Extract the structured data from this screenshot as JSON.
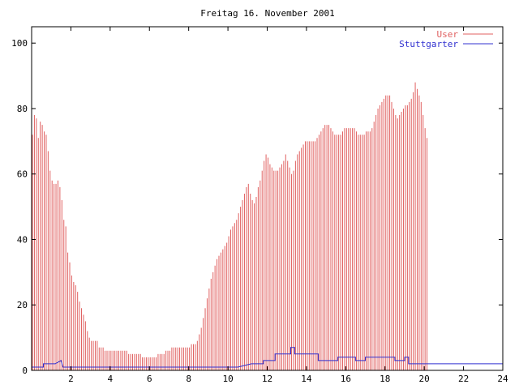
{
  "chart_data": {
    "type": "bar",
    "title": "Freitag 16. November 2001",
    "xlim": [
      0,
      24
    ],
    "ylim": [
      0,
      105
    ],
    "x_ticks": [
      2,
      4,
      6,
      8,
      10,
      12,
      14,
      16,
      18,
      20,
      22,
      24
    ],
    "y_ticks": [
      0,
      20,
      40,
      60,
      80,
      100
    ],
    "legend_position": "top-right",
    "x_step_hours": 0.1,
    "series": [
      {
        "name": "User",
        "style": "impulses",
        "color": "#e06060",
        "values": [
          72,
          78,
          77,
          71,
          76,
          75,
          73,
          72,
          67,
          61,
          58,
          57,
          57,
          58,
          56,
          52,
          46,
          44,
          36,
          33,
          29,
          27,
          26,
          24,
          21,
          19,
          17,
          15,
          12,
          10,
          9,
          9,
          9,
          9,
          7,
          7,
          7,
          6,
          6,
          6,
          6,
          6,
          6,
          6,
          6,
          6,
          6,
          6,
          6,
          5,
          5,
          5,
          5,
          5,
          5,
          5,
          4,
          4,
          4,
          4,
          4,
          4,
          4,
          4,
          5,
          5,
          5,
          5,
          6,
          6,
          6,
          7,
          7,
          7,
          7,
          7,
          7,
          7,
          7,
          7,
          7,
          8,
          8,
          8,
          9,
          11,
          13,
          16,
          19,
          22,
          25,
          28,
          30,
          32,
          34,
          35,
          36,
          37,
          38,
          39,
          41,
          43,
          44,
          45,
          46,
          48,
          50,
          52,
          54,
          56,
          57,
          54,
          52,
          51,
          53,
          56,
          58,
          61,
          64,
          66,
          65,
          63,
          62,
          61,
          61,
          61,
          62,
          63,
          64,
          66,
          64,
          62,
          60,
          61,
          64,
          66,
          67,
          68,
          69,
          70,
          70,
          70,
          70,
          70,
          70,
          71,
          72,
          73,
          74,
          75,
          75,
          75,
          74,
          73,
          72,
          72,
          72,
          72,
          73,
          74,
          74,
          74,
          74,
          74,
          74,
          73,
          72,
          72,
          72,
          72,
          73,
          73,
          73,
          74,
          76,
          78,
          80,
          81,
          82,
          83,
          84,
          84,
          84,
          82,
          80,
          78,
          77,
          78,
          79,
          80,
          81,
          81,
          82,
          83,
          85,
          88,
          86,
          84,
          82,
          78,
          74,
          71
        ],
        "comment": ""
      },
      {
        "name": "Stuttgarter",
        "style": "steps",
        "color": "#3030d0",
        "points": [
          [
            0,
            1
          ],
          [
            0.6,
            1
          ],
          [
            0.6,
            2
          ],
          [
            1.2,
            2
          ],
          [
            1.5,
            3
          ],
          [
            1.6,
            1
          ],
          [
            2.1,
            1
          ],
          [
            3.4,
            1
          ],
          [
            9.0,
            1
          ],
          [
            10.5,
            1
          ],
          [
            11.2,
            2
          ],
          [
            11.8,
            2
          ],
          [
            11.8,
            3
          ],
          [
            12.4,
            3
          ],
          [
            12.4,
            5
          ],
          [
            13.2,
            5
          ],
          [
            13.2,
            7
          ],
          [
            13.4,
            7
          ],
          [
            13.4,
            5
          ],
          [
            14.2,
            5
          ],
          [
            14.6,
            5
          ],
          [
            14.6,
            3
          ],
          [
            15.6,
            3
          ],
          [
            15.6,
            4
          ],
          [
            16.5,
            4
          ],
          [
            16.5,
            3
          ],
          [
            17.0,
            3
          ],
          [
            17.0,
            4
          ],
          [
            18.5,
            4
          ],
          [
            18.5,
            3
          ],
          [
            19.0,
            3
          ],
          [
            19.0,
            4
          ],
          [
            19.2,
            4
          ],
          [
            19.2,
            2
          ],
          [
            20.0,
            2
          ],
          [
            20.2,
            2
          ],
          [
            20.4,
            2
          ],
          [
            20.4,
            2
          ],
          [
            21.0,
            2
          ],
          [
            21.2,
            2
          ],
          [
            23.0,
            2
          ],
          [
            24.0,
            2
          ]
        ]
      }
    ]
  }
}
